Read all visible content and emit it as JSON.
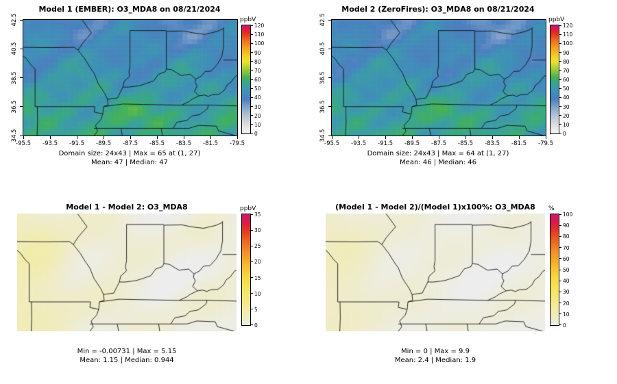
{
  "figure": {
    "background": "#ffffff",
    "variable": "O3_MDA8",
    "date": "08/21/2024"
  },
  "axes": {
    "lon_min": -95.5,
    "lon_max": -79.5,
    "lat_min": 34.5,
    "lat_max": 42.5,
    "x_ticks": [
      -95.5,
      -93.5,
      -91.5,
      -89.5,
      -87.5,
      -85.5,
      -83.5,
      -81.5,
      -79.5
    ],
    "y_ticks": [
      34.5,
      36.5,
      38.5,
      40.5,
      42.5
    ]
  },
  "grid": {
    "rows": 24,
    "cols": 43
  },
  "scales": {
    "conc": {
      "unit": "ppbV",
      "stops": [
        [
          0,
          "#f7f7f7"
        ],
        [
          6,
          "#e6e6e6"
        ],
        [
          14,
          "#cdd2d8"
        ],
        [
          22,
          "#a9bcd4"
        ],
        [
          30,
          "#7da0c8"
        ],
        [
          38,
          "#4c7fbe"
        ],
        [
          46,
          "#3f8fb8"
        ],
        [
          52,
          "#3d9da5"
        ],
        [
          57,
          "#3aa883"
        ],
        [
          62,
          "#45b158"
        ],
        [
          67,
          "#7cbf43"
        ],
        [
          73,
          "#b1d039"
        ],
        [
          80,
          "#f0e52b"
        ],
        [
          88,
          "#f6c723"
        ],
        [
          96,
          "#f49c1d"
        ],
        [
          104,
          "#ee6b22"
        ],
        [
          111,
          "#e53420"
        ],
        [
          116,
          "#df1840"
        ],
        [
          120,
          "#c9186e"
        ]
      ]
    },
    "diff": {
      "unit": "ppbV",
      "stops": [
        [
          0,
          "#ededed"
        ],
        [
          1.5,
          "#eeeccf"
        ],
        [
          4,
          "#f1ecae"
        ],
        [
          7,
          "#f3e98c"
        ],
        [
          11,
          "#f5e563"
        ],
        [
          15,
          "#f7d942"
        ],
        [
          19,
          "#f6b930"
        ],
        [
          23,
          "#f29129"
        ],
        [
          27,
          "#ea6123"
        ],
        [
          30,
          "#e23622"
        ],
        [
          32.5,
          "#d81a4a"
        ],
        [
          35,
          "#c9186e"
        ]
      ]
    },
    "pct": {
      "unit": "%",
      "stops": [
        [
          0,
          "#ededed"
        ],
        [
          4,
          "#eeeccf"
        ],
        [
          11,
          "#f1ecae"
        ],
        [
          20,
          "#f3e98c"
        ],
        [
          31,
          "#f5e563"
        ],
        [
          43,
          "#f7d942"
        ],
        [
          54,
          "#f6b930"
        ],
        [
          66,
          "#f29129"
        ],
        [
          77,
          "#ea6123"
        ],
        [
          86,
          "#e23622"
        ],
        [
          93,
          "#d81a4a"
        ],
        [
          100,
          "#c9186e"
        ]
      ]
    }
  },
  "panels": [
    {
      "id": "model1",
      "title": "Model 1 (EMBER): O3_MDA8 on 08/21/2024",
      "caption1": "Domain size: 24x43 | Max = 65 at (1, 27)",
      "caption2": "Mean: 47 | Median: 47",
      "scale": "conc",
      "show_axes": true,
      "colorbar": {
        "unit": "ppbV",
        "min": 0,
        "max": 120,
        "step": 10
      },
      "field": {
        "type": "conc",
        "base": 40,
        "grad": 16,
        "amps": [
          5,
          3.5,
          2.5
        ],
        "phase": 0,
        "max": 65
      }
    },
    {
      "id": "model2",
      "title": "Model 2 (ZeroFires): O3_MDA8 on 08/21/2024",
      "caption1": "Domain size: 24x43 | Max = 64 at (1, 27)",
      "caption2": "Mean: 46 | Median: 46",
      "scale": "conc",
      "show_axes": true,
      "colorbar": {
        "unit": "ppbV",
        "min": 0,
        "max": 120,
        "step": 10
      },
      "field": {
        "type": "conc",
        "base": 39,
        "grad": 15.5,
        "amps": [
          5,
          3.5,
          2.5
        ],
        "phase": 0.18,
        "max": 64
      }
    },
    {
      "id": "diff",
      "title": "Model 1 - Model 2: O3_MDA8",
      "caption1": "Min = -0.00731 | Max = 5.15",
      "caption2": "Mean: 1.15 | Median: 0.944",
      "scale": "diff",
      "show_axes": false,
      "colorbar": {
        "unit": "ppbV",
        "min": 0,
        "max": 35,
        "step": 5
      },
      "field": {
        "type": "diff",
        "mult": 1,
        "cap": 5.15
      }
    },
    {
      "id": "pctdiff",
      "title": "(Model 1 - Model 2)/(Model 1)x100%: O3_MDA8",
      "caption1": "Min = 0 | Max = 9.9",
      "caption2": "Mean: 2.4 | Median: 1.9",
      "scale": "pct",
      "show_axes": false,
      "colorbar": {
        "unit": "%",
        "min": 0,
        "max": 100,
        "step": 10
      },
      "field": {
        "type": "diff",
        "mult": 1.92,
        "cap": 9.9
      }
    }
  ],
  "chart_data": [
    {
      "type": "heatmap",
      "title": "Model 1 (EMBER): O3_MDA8 on 08/21/2024",
      "model": "Model 1 (EMBER)",
      "variable": "O3_MDA8",
      "date": "08/21/2024",
      "domain_size": "24x43",
      "max": 65,
      "max_location": "(1, 27)",
      "mean": 47,
      "median": 47,
      "colorbar": {
        "unit": "ppbV",
        "min": 0,
        "max": 120,
        "tick_step": 10
      },
      "x_ticks": [
        -95.5,
        -93.5,
        -91.5,
        -89.5,
        -87.5,
        -85.5,
        -83.5,
        -81.5,
        -79.5
      ],
      "y_ticks": [
        34.5,
        36.5,
        38.5,
        40.5,
        42.5
      ],
      "notes": "Filled gridded concentration map over MO/IL/IN/OH/KY/TN/WV region; values mostly 30-65 ppbV, higher (green-yellow) in the south, bluer in the north."
    },
    {
      "type": "heatmap",
      "title": "Model 2 (ZeroFires): O3_MDA8 on 08/21/2024",
      "model": "Model 2 (ZeroFires)",
      "variable": "O3_MDA8",
      "date": "08/21/2024",
      "domain_size": "24x43",
      "max": 64,
      "max_location": "(1, 27)",
      "mean": 46,
      "median": 46,
      "colorbar": {
        "unit": "ppbV",
        "min": 0,
        "max": 120,
        "tick_step": 10
      },
      "x_ticks": [
        -95.5,
        -93.5,
        -91.5,
        -89.5,
        -87.5,
        -85.5,
        -83.5,
        -81.5,
        -79.5
      ],
      "y_ticks": [
        34.5,
        36.5,
        38.5,
        40.5,
        42.5
      ],
      "notes": "Nearly identical spatial pattern to Model 1, values about 1 ppbV lower."
    },
    {
      "type": "heatmap",
      "title": "Model 1 - Model 2: O3_MDA8",
      "min": -0.00731,
      "max": 5.15,
      "mean": 1.15,
      "median": 0.944,
      "colorbar": {
        "unit": "ppbV",
        "min": 0,
        "max": 35,
        "tick_step": 5
      },
      "notes": "Difference map mostly near zero (light gray) with pale-yellow patches up to ~5 ppbV, strongest along the western edge."
    },
    {
      "type": "heatmap",
      "title": "(Model 1 - Model 2)/(Model 1)x100%: O3_MDA8",
      "min": 0,
      "max": 9.9,
      "mean": 2.4,
      "median": 1.9,
      "colorbar": {
        "unit": "%",
        "min": 0,
        "max": 100,
        "tick_step": 10
      },
      "notes": "Percent-difference map mostly 0-10% (light gray to pale yellow), same spatial pattern as the absolute difference."
    }
  ],
  "geo": {
    "boundaries": [
      [
        [
          -91.1,
          42.5
        ],
        [
          -90.4,
          41.6
        ],
        [
          -91.05,
          40.9
        ],
        [
          -91.4,
          40.4
        ],
        [
          -90.9,
          39.8
        ],
        [
          -90.5,
          39.2
        ],
        [
          -90.2,
          38.8
        ],
        [
          -89.9,
          38.1
        ],
        [
          -89.4,
          37.4
        ],
        [
          -89.2,
          37.0
        ],
        [
          -89.15,
          36.6
        ],
        [
          -89.5,
          36.5
        ],
        [
          -89.55,
          36.0
        ],
        [
          -89.7,
          35.6
        ],
        [
          -90.1,
          35.2
        ],
        [
          -89.95,
          34.8
        ],
        [
          -90.2,
          34.5
        ]
      ],
      [
        [
          -89.2,
          37.0
        ],
        [
          -88.45,
          37.1
        ],
        [
          -88.05,
          37.85
        ],
        [
          -87.6,
          37.85
        ],
        [
          -86.8,
          37.95
        ],
        [
          -86.3,
          38.1
        ],
        [
          -85.75,
          38.28
        ],
        [
          -85.4,
          38.73
        ],
        [
          -84.9,
          38.9
        ],
        [
          -84.8,
          39.1
        ],
        [
          -84.4,
          39.05
        ],
        [
          -83.7,
          38.65
        ],
        [
          -83.0,
          38.73
        ],
        [
          -82.6,
          38.4
        ],
        [
          -82.2,
          38.6
        ],
        [
          -81.9,
          38.93
        ],
        [
          -81.45,
          38.95
        ],
        [
          -81.0,
          39.4
        ],
        [
          -80.65,
          39.95
        ],
        [
          -80.52,
          40.64
        ]
      ],
      [
        [
          -89.5,
          36.5
        ],
        [
          -88.05,
          36.68
        ],
        [
          -86.5,
          36.65
        ],
        [
          -84.8,
          36.62
        ],
        [
          -83.68,
          36.6
        ],
        [
          -81.65,
          36.61
        ],
        [
          -79.5,
          36.55
        ]
      ],
      [
        [
          -90.2,
          35.0
        ],
        [
          -88.2,
          35.0
        ],
        [
          -86.0,
          35.0
        ],
        [
          -84.3,
          35.0
        ],
        [
          -83.1,
          35.0
        ]
      ],
      [
        [
          -83.1,
          35.0
        ],
        [
          -82.4,
          35.2
        ],
        [
          -81.05,
          35.15
        ],
        [
          -80.9,
          34.82
        ],
        [
          -79.67,
          34.5
        ]
      ],
      [
        [
          -84.3,
          35.0
        ],
        [
          -84.0,
          35.42
        ],
        [
          -83.25,
          35.55
        ],
        [
          -82.9,
          35.85
        ],
        [
          -82.3,
          35.95
        ],
        [
          -82.05,
          36.12
        ],
        [
          -81.73,
          36.35
        ],
        [
          -81.65,
          36.61
        ]
      ],
      [
        [
          -94.62,
          36.5
        ],
        [
          -92.5,
          36.5
        ],
        [
          -90.15,
          36.5
        ],
        [
          -90.2,
          36.12
        ],
        [
          -89.7,
          36.02
        ],
        [
          -89.55,
          36.0
        ]
      ],
      [
        [
          -94.62,
          36.5
        ],
        [
          -94.62,
          39.1
        ],
        [
          -94.9,
          39.35
        ],
        [
          -95.3,
          39.85
        ],
        [
          -95.5,
          40.0
        ]
      ],
      [
        [
          -94.45,
          36.5
        ],
        [
          -94.43,
          35.4
        ],
        [
          -94.47,
          34.5
        ]
      ],
      [
        [
          -95.5,
          40.6
        ],
        [
          -93.4,
          40.58
        ],
        [
          -91.7,
          40.6
        ],
        [
          -91.4,
          40.4
        ]
      ],
      [
        [
          -87.52,
          41.76
        ],
        [
          -87.52,
          39.3
        ],
        [
          -87.6,
          38.9
        ],
        [
          -87.53,
          38.6
        ],
        [
          -87.95,
          38.25
        ],
        [
          -88.05,
          37.85
        ]
      ],
      [
        [
          -87.52,
          41.76
        ],
        [
          -86.8,
          41.76
        ],
        [
          -84.8,
          41.76
        ]
      ],
      [
        [
          -84.8,
          41.71
        ],
        [
          -84.8,
          39.1
        ]
      ],
      [
        [
          -84.8,
          41.71
        ],
        [
          -83.45,
          41.73
        ],
        [
          -82.8,
          41.6
        ],
        [
          -81.9,
          41.5
        ],
        [
          -81.0,
          41.7
        ],
        [
          -80.52,
          41.9
        ]
      ],
      [
        [
          -80.52,
          41.98
        ],
        [
          -80.52,
          40.64
        ]
      ],
      [
        [
          -80.52,
          39.72
        ],
        [
          -79.48,
          39.72
        ]
      ],
      [
        [
          -83.68,
          36.6
        ],
        [
          -83.1,
          36.85
        ],
        [
          -82.9,
          37.0
        ],
        [
          -82.35,
          37.25
        ],
        [
          -82.7,
          37.55
        ],
        [
          -82.5,
          37.93
        ],
        [
          -82.64,
          38.17
        ],
        [
          -82.6,
          38.4
        ]
      ],
      [
        [
          -82.35,
          37.25
        ],
        [
          -81.95,
          37.3
        ],
        [
          -81.65,
          37.2
        ],
        [
          -81.5,
          37.28
        ],
        [
          -81.35,
          37.32
        ],
        [
          -80.85,
          37.35
        ],
        [
          -80.45,
          37.65
        ],
        [
          -80.25,
          38.0
        ],
        [
          -79.95,
          38.2
        ],
        [
          -79.65,
          38.58
        ],
        [
          -79.5,
          38.65
        ]
      ],
      [
        [
          -85.18,
          35.0
        ],
        [
          -85.1,
          34.5
        ]
      ],
      [
        [
          -88.2,
          35.0
        ],
        [
          -88.1,
          34.5
        ]
      ]
    ]
  }
}
